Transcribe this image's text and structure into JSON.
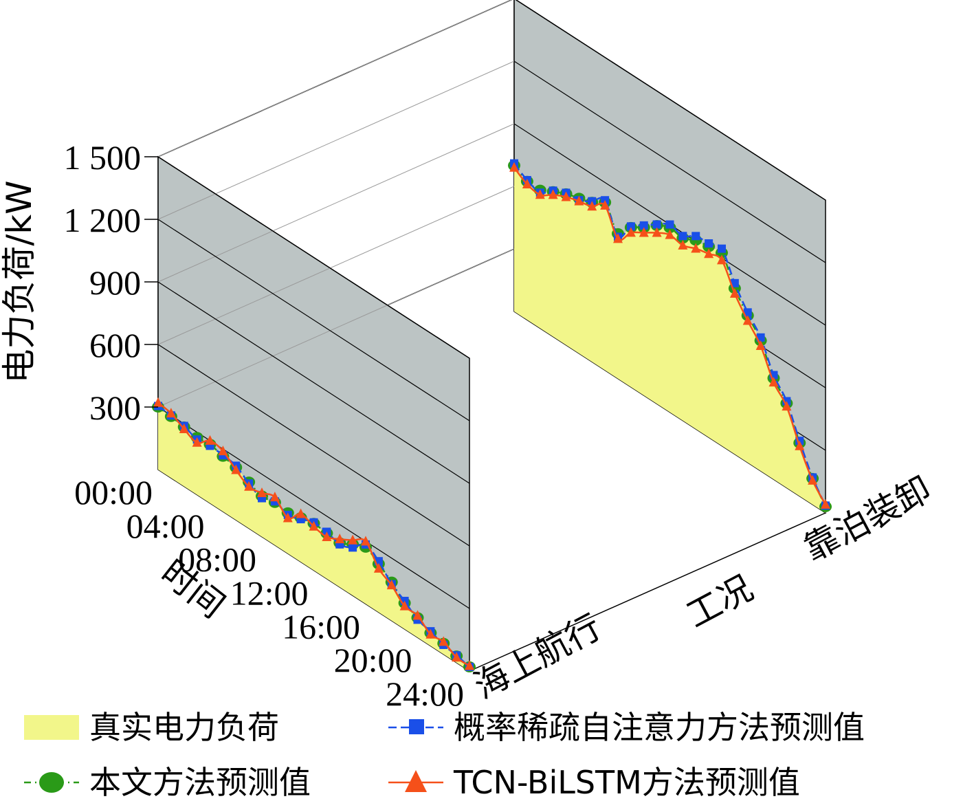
{
  "chart_data": {
    "type": "3d-line-area",
    "ylabel": "电力负荷/kW",
    "xlabel": "时间",
    "zlabel": "工况",
    "z_categories": [
      "海上航行",
      "靠泊装卸"
    ],
    "y_ticks": [
      "300",
      "600",
      "900",
      "1 200",
      "1 500"
    ],
    "y_tick_values": [
      300,
      600,
      900,
      1200,
      1500
    ],
    "x_ticks": [
      "00:00",
      "04:00",
      "08:00",
      "12:00",
      "16:00",
      "20:00",
      "24:00"
    ],
    "x_tick_hours": [
      0,
      4,
      8,
      12,
      16,
      20,
      24
    ],
    "ylim": [
      300,
      1500
    ],
    "xlim": [
      0,
      24
    ],
    "colors": {
      "actual_fill": "#f2f68a",
      "proposed": "#2a9a18",
      "sparse_attention": "#1a4fe8",
      "tcn_bilstm": "#f5501a",
      "wall": "#bcc4c4",
      "floor": "#ffffff"
    },
    "series": [
      {
        "name": "真实电力负荷",
        "key": "actual",
        "profiles": {
          "海上航行": [
            [
              0,
              300
            ],
            [
              1,
              290
            ],
            [
              2,
              280
            ],
            [
              3,
              270
            ],
            [
              4,
              280
            ],
            [
              5,
              260
            ],
            [
              6,
              250
            ],
            [
              7,
              220
            ],
            [
              8,
              190
            ],
            [
              9,
              200
            ],
            [
              10,
              190
            ],
            [
              11,
              210
            ],
            [
              12,
              220
            ],
            [
              13,
              215
            ],
            [
              14,
              210
            ],
            [
              15,
              240
            ],
            [
              16,
              270
            ],
            [
              17,
              230
            ],
            [
              18,
              180
            ],
            [
              19,
              120
            ],
            [
              20,
              90
            ],
            [
              21,
              60
            ],
            [
              22,
              50
            ],
            [
              23,
              30
            ],
            [
              24,
              20
            ]
          ],
          "靠泊装卸": [
            [
              0,
              700
            ],
            [
              1,
              660
            ],
            [
              2,
              660
            ],
            [
              3,
              690
            ],
            [
              4,
              720
            ],
            [
              5,
              740
            ],
            [
              6,
              760
            ],
            [
              7,
              800
            ],
            [
              8,
              690
            ],
            [
              9,
              760
            ],
            [
              10,
              800
            ],
            [
              11,
              850
            ],
            [
              12,
              880
            ],
            [
              13,
              870
            ],
            [
              14,
              900
            ],
            [
              15,
              910
            ],
            [
              16,
              920
            ],
            [
              17,
              790
            ],
            [
              18,
              700
            ],
            [
              19,
              620
            ],
            [
              20,
              480
            ],
            [
              21,
              400
            ],
            [
              22,
              250
            ],
            [
              23,
              120
            ],
            [
              24,
              30
            ]
          ]
        }
      },
      {
        "name": "本文方法预测值",
        "key": "proposed",
        "profiles": {
          "海上航行": [
            [
              0,
              300
            ],
            [
              1,
              295
            ],
            [
              2,
              285
            ],
            [
              3,
              275
            ],
            [
              4,
              282
            ],
            [
              5,
              265
            ],
            [
              6,
              252
            ],
            [
              7,
              222
            ],
            [
              8,
              195
            ],
            [
              9,
              205
            ],
            [
              10,
              195
            ],
            [
              11,
              212
            ],
            [
              12,
              225
            ],
            [
              13,
              218
            ],
            [
              14,
              212
            ],
            [
              15,
              245
            ],
            [
              16,
              272
            ],
            [
              17,
              232
            ],
            [
              18,
              185
            ],
            [
              19,
              125
            ],
            [
              20,
              95
            ],
            [
              21,
              62
            ],
            [
              22,
              52
            ],
            [
              23,
              32
            ],
            [
              24,
              20
            ]
          ],
          "靠泊装卸": [
            [
              0,
              700
            ],
            [
              1,
              664
            ],
            [
              2,
              662
            ],
            [
              3,
              695
            ],
            [
              4,
              725
            ],
            [
              5,
              744
            ],
            [
              6,
              765
            ],
            [
              7,
              805
            ],
            [
              8,
              695
            ],
            [
              9,
              765
            ],
            [
              10,
              805
            ],
            [
              11,
              855
            ],
            [
              12,
              885
            ],
            [
              13,
              875
            ],
            [
              14,
              905
            ],
            [
              15,
              915
            ],
            [
              16,
              925
            ],
            [
              17,
              795
            ],
            [
              18,
              705
            ],
            [
              19,
              625
            ],
            [
              20,
              485
            ],
            [
              21,
              405
            ],
            [
              22,
              255
            ],
            [
              23,
              125
            ],
            [
              24,
              30
            ]
          ]
        }
      },
      {
        "name": "概率稀疏自注意力方法预测值",
        "key": "sparse_attention",
        "profiles": {
          "海上航行": [
            [
              0,
              305
            ],
            [
              1,
              300
            ],
            [
              2,
              290
            ],
            [
              3,
              265
            ],
            [
              4,
              275
            ],
            [
              5,
              270
            ],
            [
              6,
              260
            ],
            [
              7,
              215
            ],
            [
              8,
              185
            ],
            [
              9,
              210
            ],
            [
              10,
              185
            ],
            [
              11,
              205
            ],
            [
              12,
              230
            ],
            [
              13,
              225
            ],
            [
              14,
              205
            ],
            [
              15,
              230
            ],
            [
              16,
              285
            ],
            [
              17,
              245
            ],
            [
              18,
              175
            ],
            [
              19,
              135
            ],
            [
              20,
              85
            ],
            [
              21,
              70
            ],
            [
              22,
              45
            ],
            [
              23,
              35
            ],
            [
              24,
              20
            ]
          ],
          "靠泊装卸": [
            [
              0,
              710
            ],
            [
              1,
              670
            ],
            [
              2,
              650
            ],
            [
              3,
              700
            ],
            [
              4,
              730
            ],
            [
              5,
              735
            ],
            [
              6,
              770
            ],
            [
              7,
              815
            ],
            [
              8,
              680
            ],
            [
              9,
              770
            ],
            [
              10,
              815
            ],
            [
              11,
              860
            ],
            [
              12,
              900
            ],
            [
              13,
              885
            ],
            [
              14,
              925
            ],
            [
              15,
              930
            ],
            [
              16,
              945
            ],
            [
              17,
              820
            ],
            [
              18,
              720
            ],
            [
              19,
              640
            ],
            [
              20,
              500
            ],
            [
              21,
              415
            ],
            [
              22,
              265
            ],
            [
              23,
              130
            ],
            [
              24,
              35
            ]
          ]
        }
      },
      {
        "name": "TCN-BiLSTM方法预测值",
        "key": "tcn_bilstm",
        "profiles": {
          "海上航行": [
            [
              0,
              320
            ],
            [
              1,
              310
            ],
            [
              2,
              275
            ],
            [
              3,
              250
            ],
            [
              4,
              300
            ],
            [
              5,
              290
            ],
            [
              6,
              240
            ],
            [
              7,
              200
            ],
            [
              8,
              210
            ],
            [
              9,
              230
            ],
            [
              10,
              170
            ],
            [
              11,
              230
            ],
            [
              12,
              210
            ],
            [
              13,
              200
            ],
            [
              14,
              230
            ],
            [
              15,
              265
            ],
            [
              16,
              300
            ],
            [
              17,
              210
            ],
            [
              18,
              170
            ],
            [
              19,
              110
            ],
            [
              20,
              105
            ],
            [
              21,
              55
            ],
            [
              22,
              60
            ],
            [
              23,
              25
            ],
            [
              24,
              25
            ]
          ],
          "靠泊装卸": [
            [
              0,
              690
            ],
            [
              1,
              650
            ],
            [
              2,
              640
            ],
            [
              3,
              680
            ],
            [
              4,
              710
            ],
            [
              5,
              730
            ],
            [
              6,
              745
            ],
            [
              7,
              790
            ],
            [
              8,
              670
            ],
            [
              9,
              740
            ],
            [
              10,
              780
            ],
            [
              11,
              820
            ],
            [
              12,
              850
            ],
            [
              13,
              840
            ],
            [
              14,
              865
            ],
            [
              15,
              880
            ],
            [
              16,
              890
            ],
            [
              17,
              770
            ],
            [
              18,
              680
            ],
            [
              19,
              600
            ],
            [
              20,
              465
            ],
            [
              21,
              390
            ],
            [
              22,
              240
            ],
            [
              23,
              115
            ],
            [
              24,
              40
            ]
          ]
        }
      }
    ],
    "legend": [
      {
        "label": "真实电力负荷",
        "symbol": "area"
      },
      {
        "label": "概率稀疏自注意力方法预测值",
        "symbol": "square-dash"
      },
      {
        "label": "本文方法预测值",
        "symbol": "circle-dashdot"
      },
      {
        "label": "TCN-BiLSTM方法预测值",
        "symbol": "triangle-solid"
      }
    ],
    "grid": true,
    "legend_position": "bottom"
  }
}
